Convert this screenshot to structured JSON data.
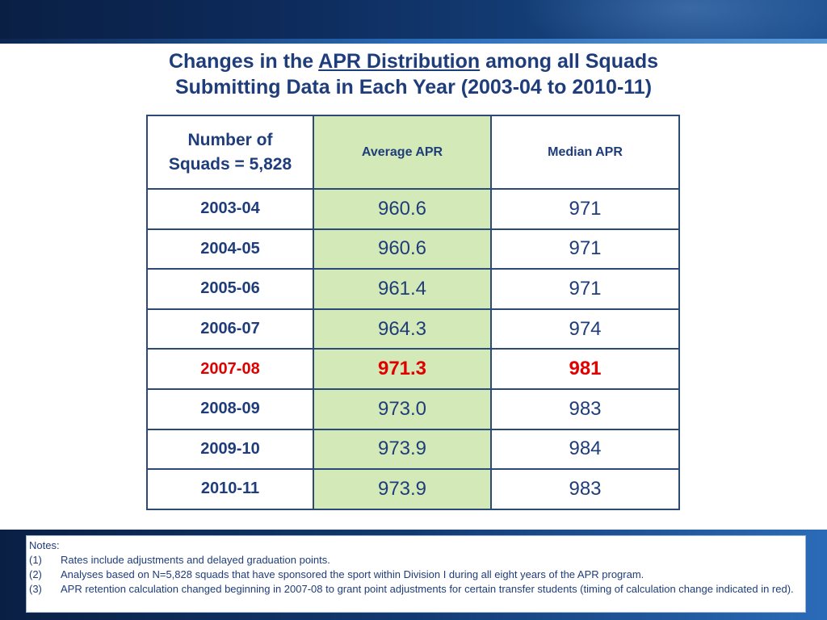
{
  "title": {
    "line1_before": "Changes in the ",
    "line1_underlined": "APR Distribution",
    "line1_after": " among all Squads",
    "line2": "Submitting Data in Each Year (2003-04 to 2010-11)"
  },
  "table": {
    "headers": {
      "col1_line1": "Number of",
      "col1_line2": "Squads = 5,828",
      "col2": "Average APR",
      "col3": "Median APR"
    },
    "rows": [
      {
        "year": "2003-04",
        "avg": "960.6",
        "median": "971"
      },
      {
        "year": "2004-05",
        "avg": "960.6",
        "median": "971"
      },
      {
        "year": "2005-06",
        "avg": "961.4",
        "median": "971"
      },
      {
        "year": "2006-07",
        "avg": "964.3",
        "median": "974"
      },
      {
        "year": "2007-08",
        "avg": "971.3",
        "median": "981"
      },
      {
        "year": "2008-09",
        "avg": "973.0",
        "median": "983"
      },
      {
        "year": "2009-10",
        "avg": "973.9",
        "median": "984"
      },
      {
        "year": "2010-11",
        "avg": "973.9",
        "median": "983"
      }
    ]
  },
  "notes": {
    "heading": "Notes:",
    "items": [
      {
        "num": "(1)",
        "text": "Rates include adjustments and delayed graduation points."
      },
      {
        "num": "(2)",
        "text": "Analyses based on N=5,828 squads that have sponsored the sport within Division I during all eight years of the APR program."
      },
      {
        "num": "(3)",
        "text": "APR retention calculation changed  beginning in 2007-08 to grant point adjustments for certain transfer students (timing of calculation change indicated in red)."
      }
    ]
  },
  "colors": {
    "title_text": "#1f3d7a",
    "avg_column_fill": "#d4e9b8",
    "highlight_text": "#e00000",
    "band_dark": "#0a1f44"
  }
}
